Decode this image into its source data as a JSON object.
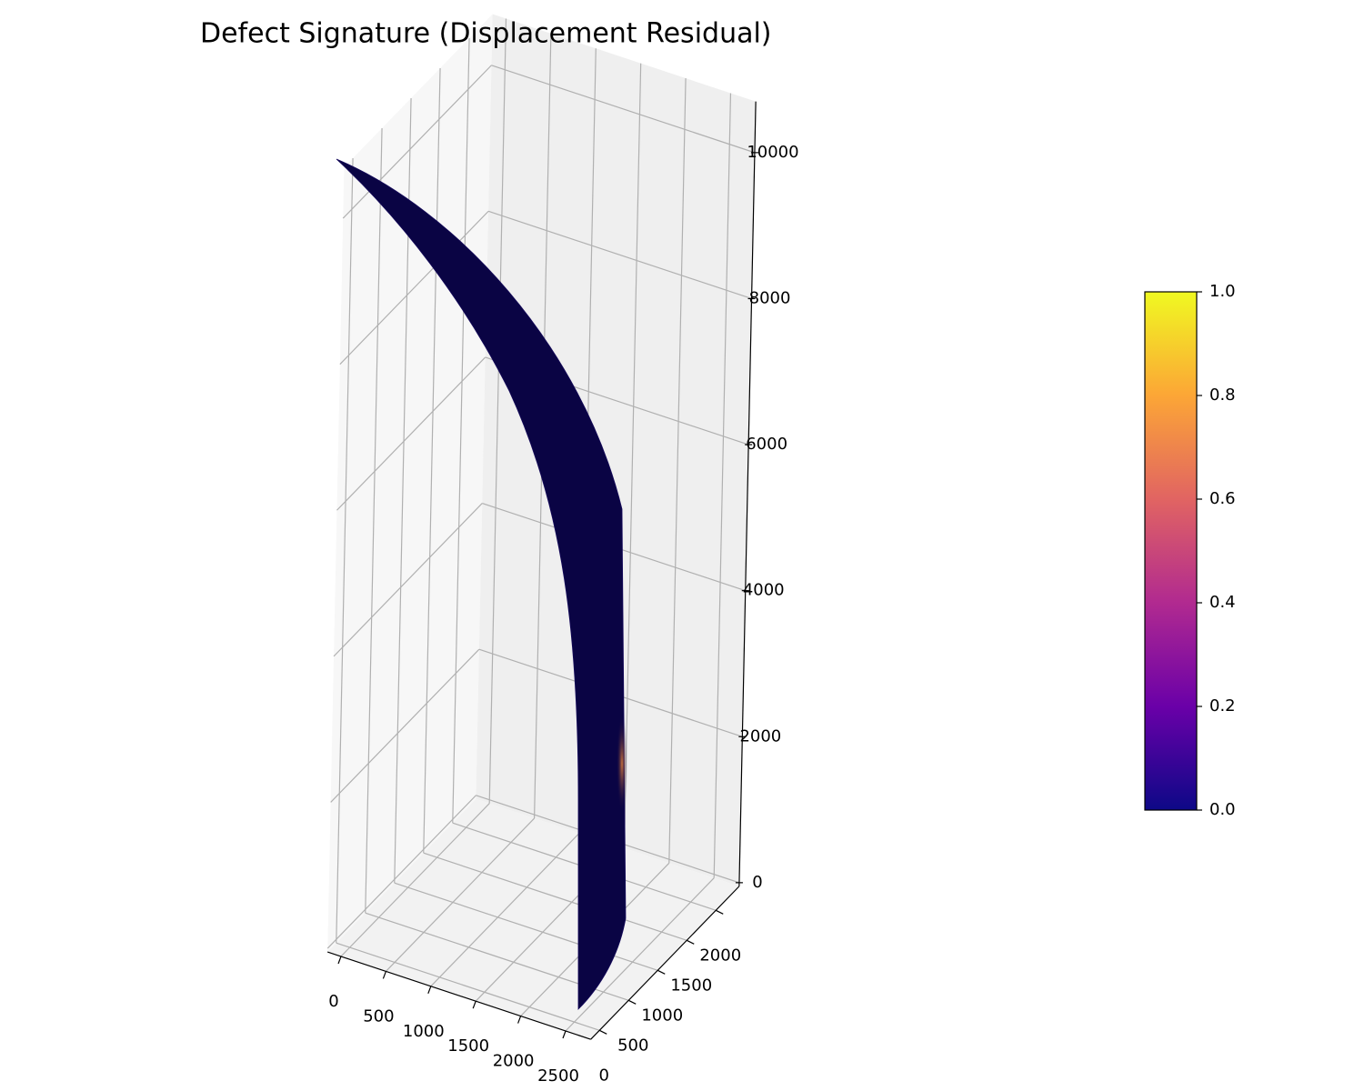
{
  "chart_data": {
    "type": "surface3d",
    "title": "Defect Signature (Displacement Residual)",
    "xlim": [
      -150,
      2780
    ],
    "ylim": [
      -150,
      2400
    ],
    "zlim": [
      -50,
      10700
    ],
    "xticks": [
      0,
      500,
      1000,
      1500,
      2000,
      2500
    ],
    "yticks": [
      0,
      500,
      1000,
      1500,
      2000
    ],
    "zticks": [
      0,
      2000,
      4000,
      6000,
      8000,
      10000
    ],
    "grid": true,
    "colorbar": {
      "colormap": [
        "#0d0887",
        "#6a00a8",
        "#b12a90",
        "#e16462",
        "#fca636",
        "#f0f921"
      ],
      "clim": [
        0,
        1
      ],
      "ticks": [
        {
          "value": 0,
          "label": "0.0"
        },
        0.2,
        0.4,
        0.6,
        0.8,
        {
          "value": 1,
          "label": "1.0"
        }
      ]
    }
  }
}
